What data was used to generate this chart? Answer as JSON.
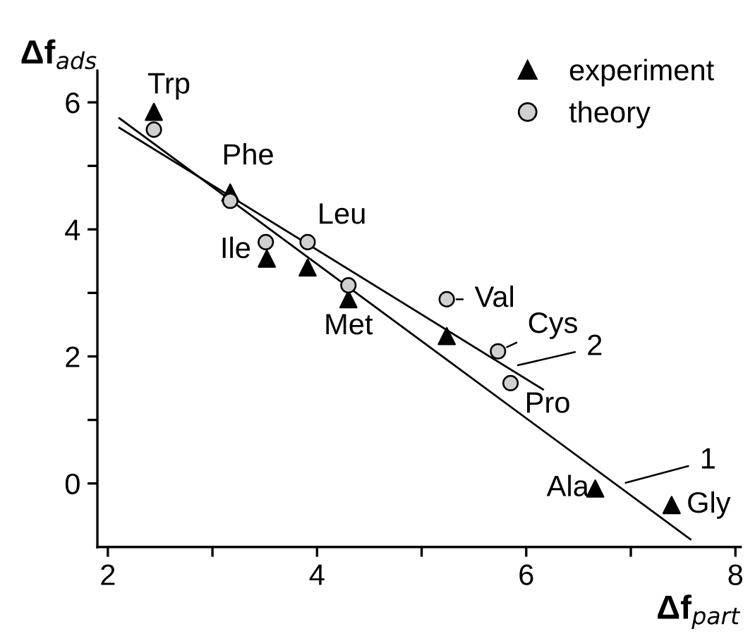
{
  "chart_data": {
    "type": "scatter",
    "xlabel": "Δf$_{part}$",
    "ylabel": "Δf$_{ads}$",
    "xlim": [
      1.9,
      8.05
    ],
    "ylim": [
      -1.0,
      6.5
    ],
    "xticks": [
      2,
      {
        "value": 3,
        "label": null
      },
      4,
      {
        "value": 5,
        "label": null
      },
      6,
      {
        "value": 7,
        "label": null
      },
      8
    ],
    "yticks": [
      0,
      {
        "value": 1,
        "label": null
      },
      2,
      {
        "value": 3,
        "label": null
      },
      4,
      {
        "value": 5,
        "label": null
      },
      6
    ],
    "grid": false,
    "legend": "top right",
    "series": [
      {
        "name": "experiment",
        "color": "#000000",
        "marker": "triangle",
        "x": [
          2.44,
          3.17,
          3.52,
          3.91,
          4.3,
          5.24,
          6.66,
          7.39
        ],
        "values": [
          5.85,
          4.58,
          3.54,
          3.4,
          2.9,
          2.32,
          -0.08,
          -0.34
        ]
      },
      {
        "name": "theory",
        "color": "#d0d0d0",
        "marker": "circle",
        "x": [
          2.44,
          3.17,
          3.51,
          3.91,
          4.3,
          5.24,
          5.73,
          5.85
        ],
        "values": [
          5.57,
          4.45,
          3.8,
          3.8,
          3.12,
          2.9,
          2.08,
          1.58
        ]
      },
      {
        "type": "line",
        "color": "#000000",
        "x": [
          2.11,
          7.57
        ],
        "values": [
          5.75,
          -0.88
        ]
      },
      {
        "type": "line",
        "color": "#000000",
        "x": [
          2.11,
          6.16
        ],
        "values": [
          5.6,
          1.48
        ]
      }
    ],
    "annotations": [
      {
        "text": "Trp",
        "x": 2.44,
        "y": 5.85
      },
      {
        "text": "Phe",
        "x": 3.17,
        "y": 4.58
      },
      {
        "text": "Ile",
        "x": 3.51,
        "y": 3.8
      },
      {
        "text": "Leu",
        "x": 3.91,
        "y": 3.8
      },
      {
        "text": "Met",
        "x": 4.3,
        "y": 2.9
      },
      {
        "text": "Val",
        "x": 5.24,
        "y": 2.9
      },
      {
        "text": "Cys",
        "x": 5.73,
        "y": 2.08
      },
      {
        "text": "Pro",
        "x": 5.85,
        "y": 1.58
      },
      {
        "text": "Ala",
        "x": 6.66,
        "y": -0.08
      },
      {
        "text": "Gly",
        "x": 7.39,
        "y": -0.34
      },
      {
        "text": "2",
        "x": 5.92,
        "y": 1.86
      },
      {
        "text": "1",
        "x": 6.95,
        "y": 0.01
      }
    ]
  }
}
